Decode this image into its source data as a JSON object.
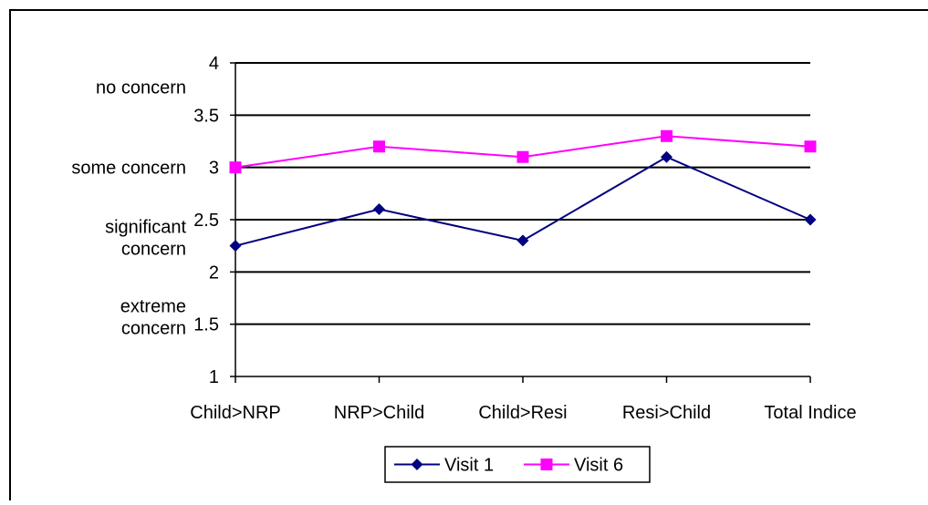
{
  "chart_data": {
    "type": "line",
    "title": "",
    "xlabel": "",
    "ylabel": "",
    "categories": [
      "Child>NRP",
      "NRP>Child",
      "Child>Resi",
      "Resi>Child",
      "Total Indice"
    ],
    "ylim": [
      1,
      4
    ],
    "yticks": [
      "1",
      "1.5",
      "2",
      "2.5",
      "3",
      "3.5",
      "4"
    ],
    "grid": true,
    "legend_position": "bottom",
    "category_annotations": [
      {
        "lines": [
          "no concern"
        ],
        "value": 3.77
      },
      {
        "lines": [
          "some concern"
        ],
        "value": 3.0
      },
      {
        "lines": [
          "significant",
          "concern"
        ],
        "value": 2.33
      },
      {
        "lines": [
          "extreme",
          "concern"
        ],
        "value": 1.57
      }
    ],
    "series": [
      {
        "name": "Visit 1",
        "values": [
          2.25,
          2.6,
          2.3,
          3.1,
          2.5
        ],
        "color": "#000080",
        "marker": "diamond"
      },
      {
        "name": "Visit 6",
        "values": [
          3.0,
          3.2,
          3.1,
          3.3,
          3.2
        ],
        "color": "#ff00ff",
        "marker": "square"
      }
    ]
  }
}
